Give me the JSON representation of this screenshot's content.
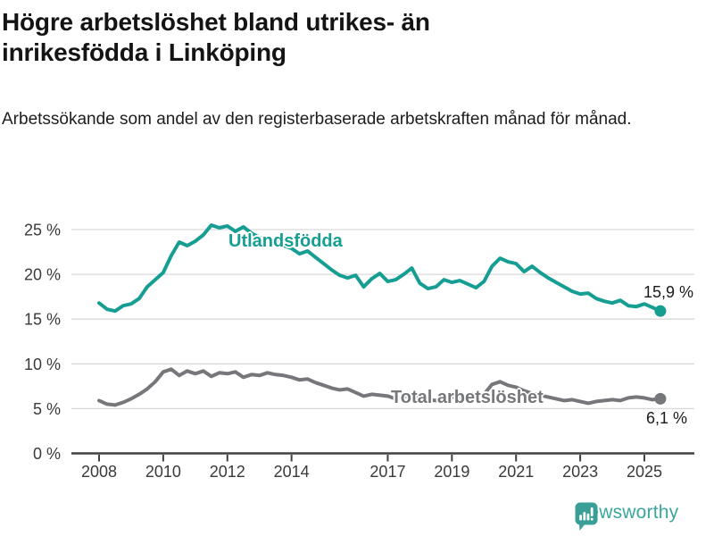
{
  "header": {
    "title_line1": "Högre arbetslöshet bland utrikes- än",
    "title_line2": "inrikesfödda i Linköping",
    "subtitle": "Arbetssökande som andel av den registerbaserade arbetskraften månad för månad."
  },
  "branding": {
    "name": "Newsworthy"
  },
  "colors": {
    "foreign_series": "#179e93",
    "total_series": "#76777b",
    "gridline": "#d9d9d9",
    "axis": "#404040",
    "tick_label": "#3a3a3a",
    "value_label": "#1a1a1a",
    "brand_teal": "#3aa79d",
    "background": "#ffffff"
  },
  "chart_data": {
    "type": "line",
    "title": "Högre arbetslöshet bland utrikes- än inrikesfödda i Linköping",
    "subtitle": "Arbetssökande som andel av den registerbaserade arbetskraften månad för månad.",
    "unit": "%",
    "x_start": 2008.0,
    "x_step": 0.25,
    "x_ticks": [
      "2008",
      "2010",
      "2012",
      "2014",
      "2017",
      "2019",
      "2021",
      "2023",
      "2025"
    ],
    "x_tick_years": [
      2008,
      2010,
      2012,
      2014,
      2017,
      2019,
      2021,
      2023,
      2025
    ],
    "y_ticks": [
      0,
      5,
      10,
      15,
      20,
      25
    ],
    "y_tick_labels": [
      "0 %",
      "5 %",
      "10 %",
      "15 %",
      "20 %",
      "25 %"
    ],
    "ylim": [
      0,
      27
    ],
    "xlim": [
      2007.15,
      2026.55
    ],
    "grid": "horizontal",
    "legend_position": "inline-labels",
    "series": [
      {
        "name": "Utlandsfödda",
        "color": "#179e93",
        "end_label": "15,9 %",
        "end_value": 15.9,
        "values": [
          16.8,
          16.1,
          15.9,
          16.5,
          16.7,
          17.3,
          18.6,
          19.4,
          20.2,
          22.1,
          23.6,
          23.2,
          23.7,
          24.4,
          25.5,
          25.2,
          25.4,
          24.8,
          25.3,
          24.6,
          24.1,
          23.6,
          23.9,
          23.2,
          22.9,
          22.3,
          22.6,
          21.9,
          21.2,
          20.5,
          19.9,
          19.6,
          19.9,
          18.6,
          19.5,
          20.1,
          19.2,
          19.4,
          20.0,
          20.7,
          19.0,
          18.4,
          18.6,
          19.4,
          19.1,
          19.3,
          18.9,
          18.5,
          19.2,
          20.9,
          21.8,
          21.4,
          21.2,
          20.3,
          20.9,
          20.2,
          19.6,
          19.1,
          18.6,
          18.1,
          17.8,
          17.9,
          17.3,
          17.0,
          16.8,
          17.1,
          16.5,
          16.4,
          16.7,
          16.3,
          15.9
        ]
      },
      {
        "name": "Total arbetslöshet",
        "color": "#76777b",
        "end_label": "6,1 %",
        "end_value": 6.1,
        "values": [
          5.9,
          5.5,
          5.4,
          5.7,
          6.1,
          6.6,
          7.2,
          8.0,
          9.1,
          9.4,
          8.7,
          9.2,
          8.9,
          9.2,
          8.6,
          9.0,
          8.9,
          9.1,
          8.5,
          8.8,
          8.7,
          9.0,
          8.8,
          8.7,
          8.5,
          8.2,
          8.3,
          7.9,
          7.6,
          7.3,
          7.1,
          7.2,
          6.8,
          6.4,
          6.6,
          6.5,
          6.4,
          6.1,
          6.3,
          6.4,
          6.2,
          6.0,
          5.9,
          6.1,
          6.3,
          6.1,
          6.3,
          6.4,
          6.6,
          7.7,
          8.0,
          7.6,
          7.4,
          7.0,
          6.7,
          6.5,
          6.3,
          6.1,
          5.9,
          6.0,
          5.8,
          5.6,
          5.8,
          5.9,
          6.0,
          5.9,
          6.2,
          6.3,
          6.2,
          6.0,
          6.1
        ]
      }
    ]
  }
}
